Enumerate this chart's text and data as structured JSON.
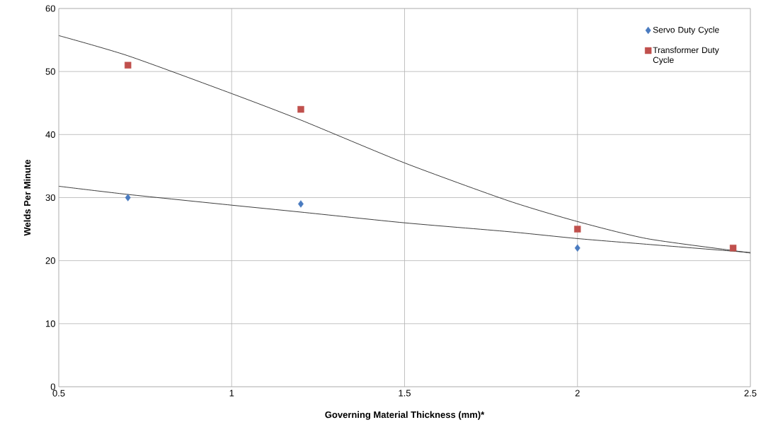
{
  "chart_data": {
    "type": "scatter",
    "xlabel": "Governing Material Thickness (mm)*",
    "ylabel": "Welds Per Minute",
    "xlim": [
      0.5,
      2.5
    ],
    "ylim": [
      0,
      60
    ],
    "xticks": [
      0.5,
      1,
      1.5,
      2,
      2.5
    ],
    "yticks": [
      0,
      10,
      20,
      30,
      40,
      50,
      60
    ],
    "grid": true,
    "legend": "top right",
    "series": [
      {
        "name": "Servo Duty Cycle",
        "marker": "diamond",
        "color": "#4a7bc0",
        "x": [
          0.7,
          1.2,
          2.0
        ],
        "values": [
          30,
          29,
          22
        ]
      },
      {
        "name": "Transformer Duty Cycle",
        "marker": "square",
        "color": "#c0504d",
        "x": [
          0.7,
          1.2,
          2.0,
          2.45
        ],
        "values": [
          51,
          44,
          25,
          22
        ]
      },
      {
        "type": "line",
        "marker": "none",
        "color": "#262626",
        "x": [
          0.5,
          0.7,
          1.0,
          1.2,
          1.5,
          1.8,
          2.0,
          2.2,
          2.45,
          2.5
        ],
        "values": [
          31.8,
          30.5,
          28.8,
          27.7,
          26.0,
          24.6,
          23.5,
          22.6,
          21.5,
          21.3
        ]
      },
      {
        "type": "line",
        "marker": "none",
        "color": "#262626",
        "x": [
          0.5,
          0.7,
          1.0,
          1.2,
          1.5,
          1.8,
          2.0,
          2.2,
          2.45,
          2.5
        ],
        "values": [
          55.7,
          52.5,
          46.5,
          42.3,
          35.5,
          29.5,
          26.2,
          23.5,
          21.6,
          21.2
        ]
      }
    ]
  }
}
